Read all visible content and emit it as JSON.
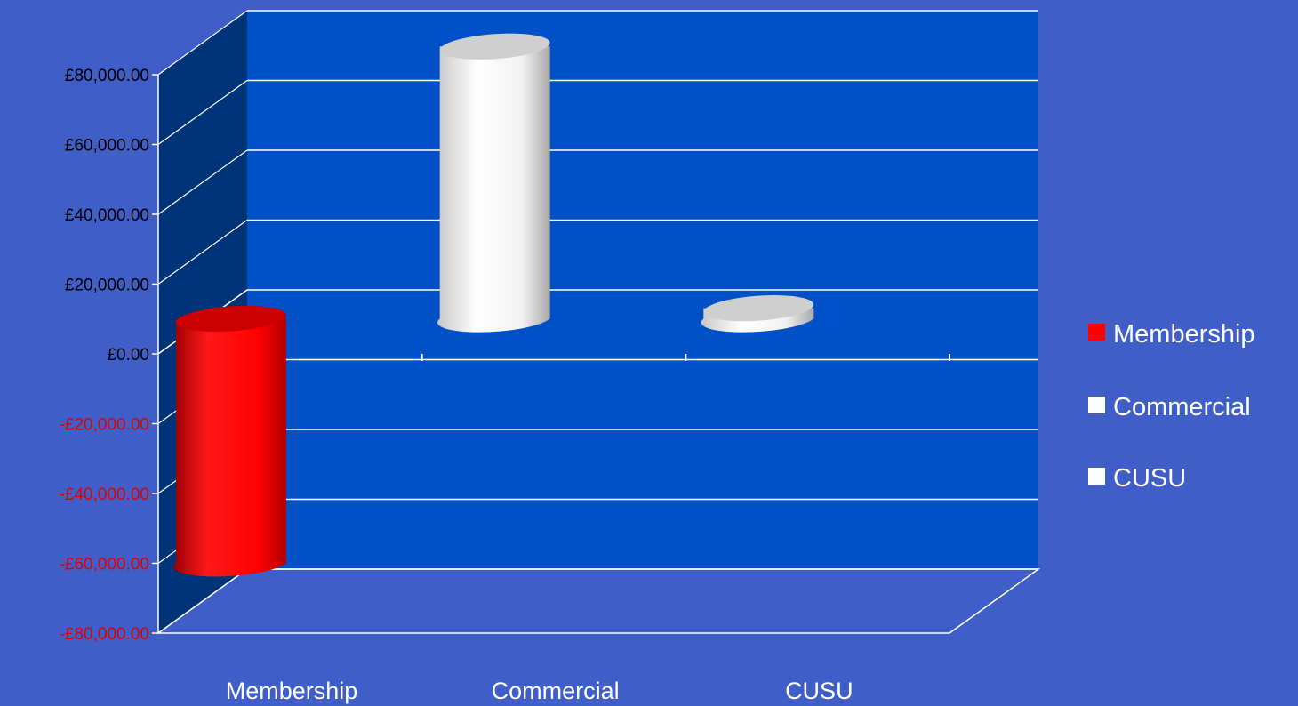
{
  "chart_data": {
    "type": "bar",
    "categories": [
      "Membership",
      "Commercial",
      "CUSU"
    ],
    "series": [
      {
        "name": "Membership",
        "values": [
          -70000,
          0,
          0
        ]
      },
      {
        "name": "Commercial",
        "values": [
          0,
          78000,
          0
        ]
      },
      {
        "name": "CUSU",
        "values": [
          0,
          0,
          3000
        ]
      }
    ],
    "ylim": [
      -80000,
      80000
    ],
    "y_tick_values": [
      80000,
      60000,
      40000,
      20000,
      0,
      -20000,
      -40000,
      -60000,
      -80000
    ],
    "y_tick_labels": [
      "£80,000.00",
      "£60,000.00",
      "£40,000.00",
      "£20,000.00",
      "£0.00",
      "-£20,000.00",
      "-£40,000.00",
      "-£60,000.00",
      "-£80,000.00"
    ],
    "legend": {
      "placement": "right",
      "entries": [
        "Membership",
        "Commercial",
        "CUSU"
      ]
    },
    "colors": {
      "background": "#3f5ec8",
      "back_wall": "#0050c8",
      "side_wall": "#003478",
      "grid": "#ffffff",
      "positive_tick_text": "#000000",
      "negative_tick_text": "#e00000",
      "membership": "#ff0000",
      "commercial": "#ffffff",
      "cusu": "#ffffff"
    },
    "grid": true,
    "style": "3d-cylinder"
  }
}
